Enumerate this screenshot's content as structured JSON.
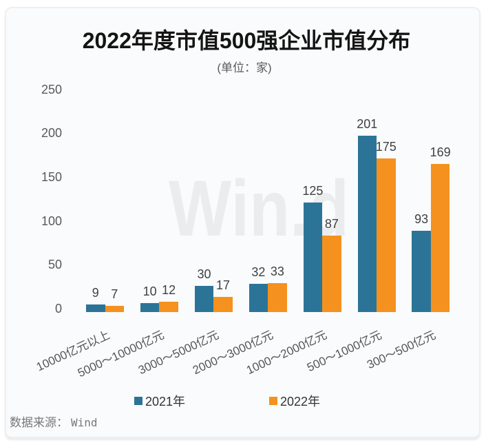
{
  "chart_data": {
    "type": "bar",
    "title": "2022年度市值500强企业市值分布",
    "subtitle": "(单位：家)",
    "categories": [
      "10000亿元以上",
      "5000～10000亿元",
      "3000～5000亿元",
      "2000～3000亿元",
      "1000～2000亿元",
      "500～1000亿元",
      "300～500亿元"
    ],
    "series": [
      {
        "name": "2021年",
        "color": "#2b7498",
        "values": [
          9,
          10,
          30,
          32,
          125,
          201,
          93
        ]
      },
      {
        "name": "2022年",
        "color": "#f5911e",
        "values": [
          7,
          12,
          17,
          33,
          87,
          175,
          169
        ]
      }
    ],
    "ylim": [
      0,
      250
    ],
    "yticks": [
      0,
      50,
      100,
      150,
      200,
      250
    ],
    "grid": false,
    "legend_position": "bottom",
    "value_labels": true
  },
  "watermark": "Win.d",
  "source": {
    "label": "数据来源：",
    "value": "Wind"
  }
}
